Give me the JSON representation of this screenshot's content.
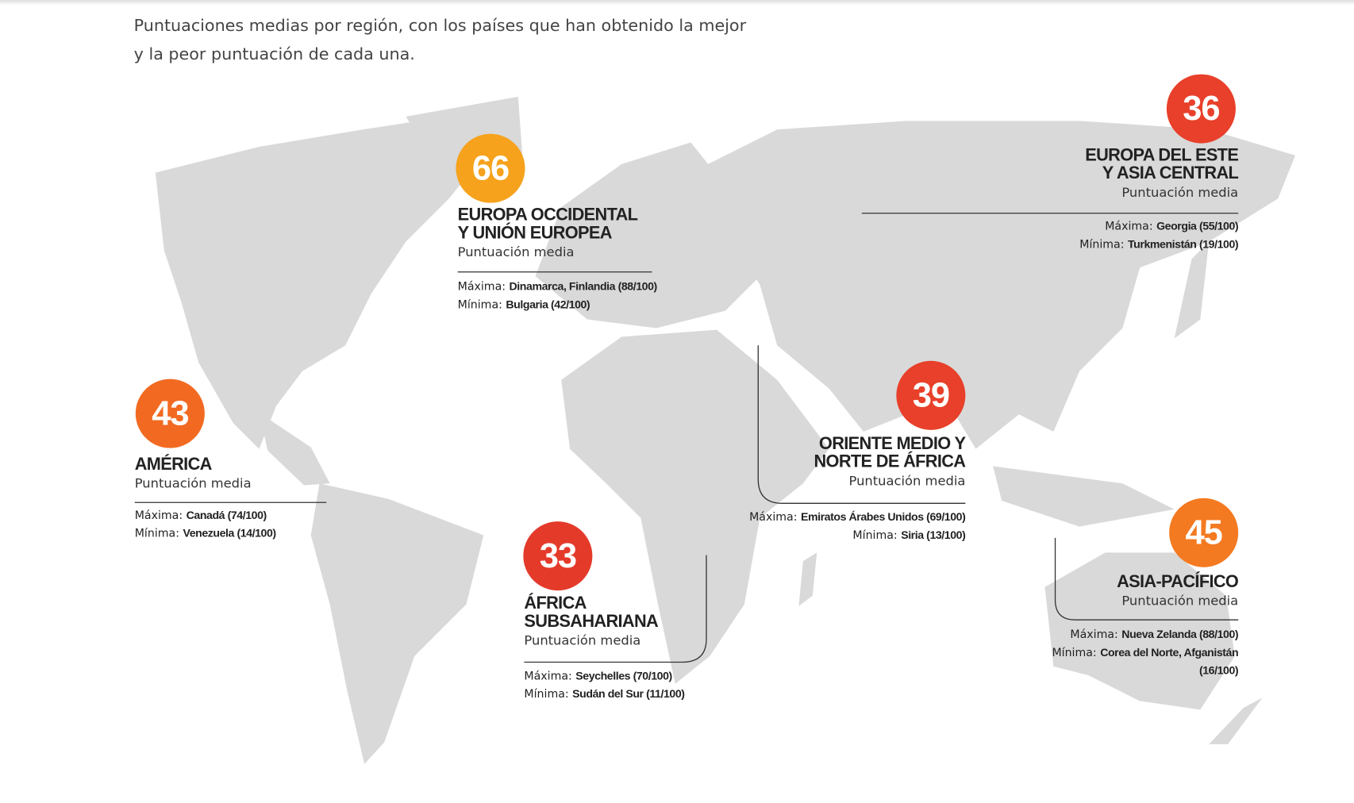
{
  "intro": [
    "Puntuaciones medias por región, con los países que han obtenido la mejor",
    "y la peor puntuación de cada una."
  ],
  "regions": [
    {
      "score": 66,
      "color": "#f6a21c",
      "name": [
        "EUROPA OCCIDENTAL",
        "Y UNIÓN EUROPEA"
      ],
      "subtitle": "Puntuación media",
      "max_label": "Máxima:",
      "max": "Dinamarca, Finlandia (88/100)",
      "min_label": "Mínima:",
      "min": "Bulgaria (42/100)"
    },
    {
      "score": 36,
      "color": "#e8402a",
      "name": [
        "EUROPA DEL ESTE",
        "Y ASIA CENTRAL"
      ],
      "subtitle": "Puntuación media",
      "max_label": "Máxima:",
      "max": "Georgia (55/100)",
      "min_label": "Mínima:",
      "min": "Turkmenistán (19/100)"
    },
    {
      "score": 43,
      "color": "#f26a22",
      "name": [
        "AMÉRICA"
      ],
      "subtitle": "Puntuación media",
      "max_label": "Máxima:",
      "max": "Canadá (74/100)",
      "min_label": "Mínima:",
      "min": "Venezuela (14/100)"
    },
    {
      "score": 39,
      "color": "#e8402a",
      "name": [
        "ORIENTE MEDIO Y",
        "NORTE DE ÁFRICA"
      ],
      "subtitle": "Puntuación media",
      "max_label": "Máxima:",
      "max": "Emiratos Árabes Unidos (69/100)",
      "min_label": "Mínima:",
      "min": "Siria (13/100)"
    },
    {
      "score": 33,
      "color": "#e43a2a",
      "name": [
        "ÁFRICA",
        "SUBSAHARIANA"
      ],
      "subtitle": "Puntuación media",
      "max_label": "Máxima:",
      "max": "Seychelles (70/100)",
      "min_label": "Mínima:",
      "min": "Sudán del Sur (11/100)"
    },
    {
      "score": 45,
      "color": "#f47a21",
      "name": [
        "ASIA-PACÍFICO"
      ],
      "subtitle": "Puntuación media",
      "max_label": "Máxima:",
      "max": "Nueva Zelanda (88/100)",
      "min_label": "Mínima:",
      "min": "Corea del Norte, Afganistán (16/100)"
    }
  ]
}
